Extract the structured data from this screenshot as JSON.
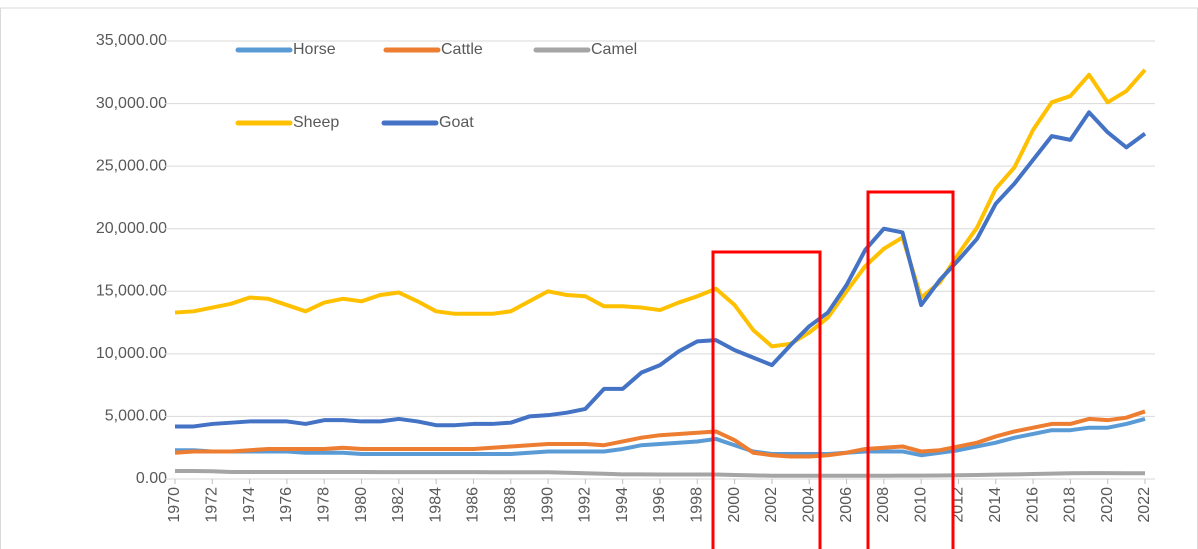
{
  "chart_data": {
    "type": "line",
    "x": [
      1970,
      1971,
      1972,
      1973,
      1974,
      1975,
      1976,
      1977,
      1978,
      1979,
      1980,
      1981,
      1982,
      1983,
      1984,
      1985,
      1986,
      1987,
      1988,
      1989,
      1990,
      1991,
      1992,
      1993,
      1994,
      1995,
      1996,
      1997,
      1998,
      1999,
      2000,
      2001,
      2002,
      2003,
      2004,
      2005,
      2006,
      2007,
      2008,
      2009,
      2010,
      2011,
      2012,
      2013,
      2014,
      2015,
      2016,
      2017,
      2018,
      2019,
      2020,
      2021,
      2022
    ],
    "xlim": [
      1970,
      2022
    ],
    "xticks": [
      1970,
      1972,
      1974,
      1976,
      1978,
      1980,
      1982,
      1984,
      1986,
      1988,
      1990,
      1992,
      1994,
      1996,
      1998,
      2000,
      2002,
      2004,
      2006,
      2008,
      2010,
      2012,
      2014,
      2016,
      2018,
      2020,
      2022
    ],
    "ylim": [
      0,
      35000
    ],
    "yticks": [
      {
        "value": 0,
        "label": "0.00"
      },
      {
        "value": 5000,
        "label": "5,000.00"
      },
      {
        "value": 10000,
        "label": "10,000.00"
      },
      {
        "value": 15000,
        "label": "15,000.00"
      },
      {
        "value": 20000,
        "label": "20,000.00"
      },
      {
        "value": 25000,
        "label": "25,000.00"
      },
      {
        "value": 30000,
        "label": "30,000.00"
      },
      {
        "value": 35000,
        "label": "35,000.00"
      }
    ],
    "grid": true,
    "legend": "top-left",
    "series": [
      {
        "name": "Horse",
        "color": "#5b9bd5",
        "values": [
          2300,
          2300,
          2200,
          2200,
          2200,
          2200,
          2200,
          2100,
          2100,
          2100,
          2000,
          2000,
          2000,
          2000,
          2000,
          2000,
          2000,
          2000,
          2000,
          2100,
          2200,
          2200,
          2200,
          2200,
          2400,
          2700,
          2800,
          2900,
          3000,
          3200,
          2700,
          2200,
          2000,
          2000,
          2000,
          2000,
          2100,
          2200,
          2200,
          2200,
          1900,
          2100,
          2300,
          2600,
          2900,
          3300,
          3600,
          3900,
          3900,
          4100,
          4100,
          4400,
          4800
        ]
      },
      {
        "name": "Cattle",
        "color": "#ed7d31",
        "values": [
          2100,
          2200,
          2200,
          2200,
          2300,
          2400,
          2400,
          2400,
          2400,
          2500,
          2400,
          2400,
          2400,
          2400,
          2400,
          2400,
          2400,
          2500,
          2600,
          2700,
          2800,
          2800,
          2800,
          2700,
          3000,
          3300,
          3500,
          3600,
          3700,
          3800,
          3100,
          2100,
          1900,
          1800,
          1800,
          1900,
          2100,
          2400,
          2500,
          2600,
          2200,
          2300,
          2600,
          2900,
          3400,
          3800,
          4100,
          4400,
          4400,
          4800,
          4700,
          4900,
          5400
        ]
      },
      {
        "name": "Camel",
        "color": "#a5a5a5",
        "values": [
          640,
          640,
          620,
          560,
          560,
          560,
          560,
          560,
          560,
          560,
          560,
          550,
          550,
          550,
          550,
          550,
          550,
          540,
          540,
          540,
          540,
          500,
          460,
          420,
          370,
          370,
          360,
          360,
          360,
          360,
          320,
          290,
          260,
          260,
          260,
          260,
          260,
          260,
          260,
          270,
          270,
          280,
          300,
          320,
          350,
          370,
          400,
          430,
          460,
          470,
          470,
          460,
          460
        ]
      },
      {
        "name": "Sheep",
        "color": "#ffc000",
        "values": [
          13300,
          13400,
          13700,
          14000,
          14500,
          14400,
          13900,
          13400,
          14100,
          14400,
          14200,
          14700,
          14900,
          14200,
          13400,
          13200,
          13200,
          13200,
          13400,
          14200,
          15000,
          14700,
          14600,
          13800,
          13800,
          13700,
          13500,
          14100,
          14600,
          15200,
          13900,
          11900,
          10600,
          10800,
          11700,
          12900,
          15000,
          17000,
          18400,
          19300,
          14500,
          15700,
          18000,
          20100,
          23200,
          24900,
          27900,
          30100,
          30600,
          32300,
          30100,
          31000,
          32700
        ]
      },
      {
        "name": "Goat",
        "color": "#4472c4",
        "values": [
          4200,
          4200,
          4400,
          4500,
          4600,
          4600,
          4600,
          4400,
          4700,
          4700,
          4600,
          4600,
          4800,
          4600,
          4300,
          4300,
          4400,
          4400,
          4500,
          5000,
          5100,
          5300,
          5600,
          7200,
          7200,
          8500,
          9100,
          10200,
          11000,
          11100,
          10300,
          9700,
          9100,
          10700,
          12200,
          13300,
          15500,
          18300,
          20000,
          19700,
          13900,
          15900,
          17500,
          19200,
          22000,
          23600,
          25500,
          27400,
          27100,
          29300,
          27700,
          26500,
          27600
        ]
      }
    ]
  }
}
